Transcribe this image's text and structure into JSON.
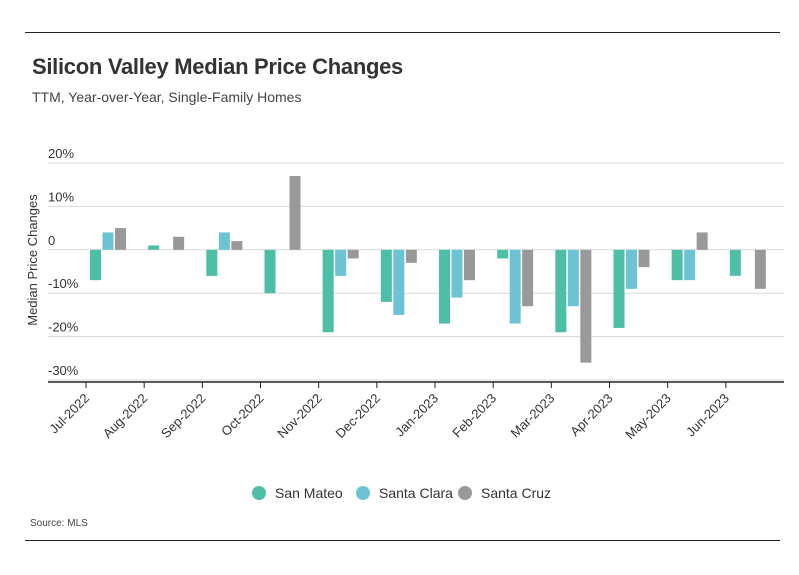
{
  "header": {
    "title": "Silicon Valley Median Price Changes",
    "subtitle": "TTM, Year-over-Year, Single-Family Homes"
  },
  "footer": {
    "source": "Source:  MLS"
  },
  "chart_data": {
    "type": "bar",
    "title": "Silicon Valley Median Price Changes",
    "subtitle": "TTM, Year-over-Year, Single-Family Homes",
    "xlabel": "",
    "ylabel": "Median Price Changes",
    "ylim": [
      -30,
      20
    ],
    "yticks": [
      20,
      10,
      0,
      -10,
      -20,
      -30
    ],
    "ytick_labels": [
      "20%",
      "10%",
      "0",
      "-10%",
      "-20%",
      "-30%"
    ],
    "grid": true,
    "legend_position": "bottom-center",
    "categories": [
      "Jul-2022",
      "Aug-2022",
      "Sep-2022",
      "Oct-2022",
      "Nov-2022",
      "Dec-2022",
      "Jan-2023",
      "Feb-2023",
      "Mar-2023",
      "Apr-2023",
      "May-2023",
      "Jun-2023"
    ],
    "series": [
      {
        "name": "San Mateo",
        "color": "#4dbfa7",
        "values": [
          -7,
          1,
          -6,
          -10,
          -19,
          -12,
          -17,
          -2,
          -19,
          -18,
          -7,
          -6
        ]
      },
      {
        "name": "Santa Clara",
        "color": "#6cc3d3",
        "values": [
          4,
          0,
          4,
          0,
          -6,
          -15,
          -11,
          -17,
          -13,
          -9,
          -7,
          0
        ]
      },
      {
        "name": "Santa Cruz",
        "color": "#999999",
        "values": [
          5,
          3,
          2,
          17,
          -2,
          -3,
          -7,
          -13,
          -26,
          -4,
          4,
          -9
        ]
      }
    ]
  }
}
